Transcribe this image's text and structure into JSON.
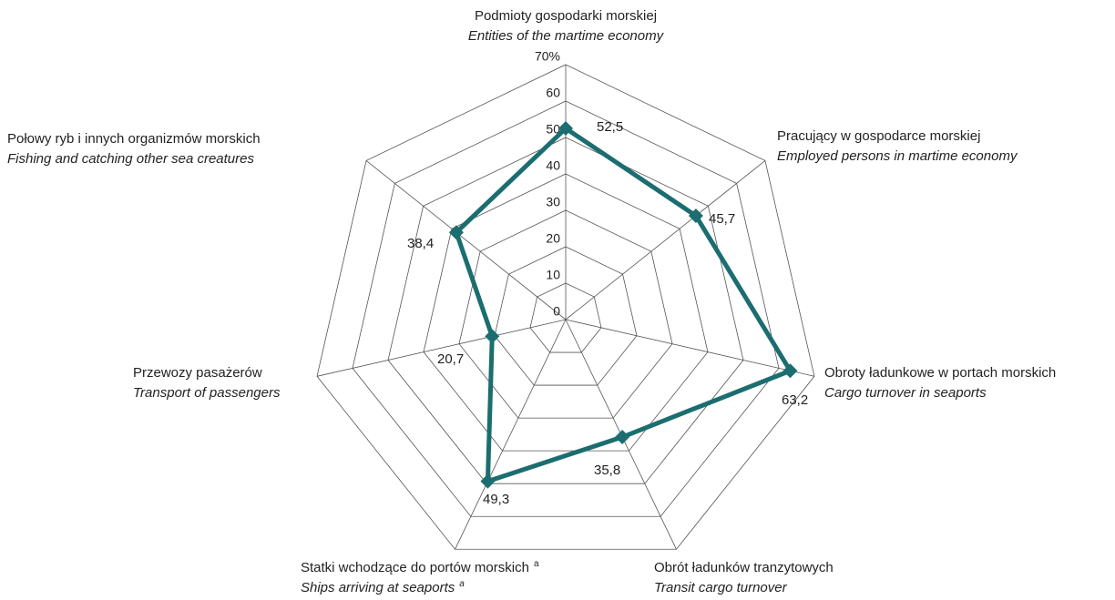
{
  "chart_data": {
    "type": "radar",
    "categories": [
      "Podmioty gospodarki morskiej",
      "Pracujący w gospodarce morskiej",
      "Obroty ładunkowe w portach morskich",
      "Obrót ładunków tranzytowych",
      "Statki wchodzące do portów morskich",
      "Przewozy pasażerów",
      "Połowy ryb i innych organizmów morskich"
    ],
    "categories_en": [
      "Entities of the martime economy",
      "Employed persons in martime economy",
      "Cargo turnover in seaports",
      "Transit cargo turnover",
      "Ships arriving at seaports",
      "Transport of passengers",
      "Fishing and catching other sea creatures"
    ],
    "footnote_mark": "a",
    "series": [
      {
        "color": "#1b6d70",
        "values": [
          52.5,
          45.7,
          63.2,
          35.8,
          49.3,
          20.7,
          38.4
        ],
        "value_labels": [
          "52,5",
          "45,7",
          "63,2",
          "35,8",
          "49,3",
          "20,7",
          "38,4"
        ]
      }
    ],
    "ylim": [
      0,
      70
    ],
    "yticks": [
      0,
      10,
      20,
      30,
      40,
      50,
      60,
      {
        "value": 70,
        "label": "70%"
      }
    ],
    "grid": true
  }
}
